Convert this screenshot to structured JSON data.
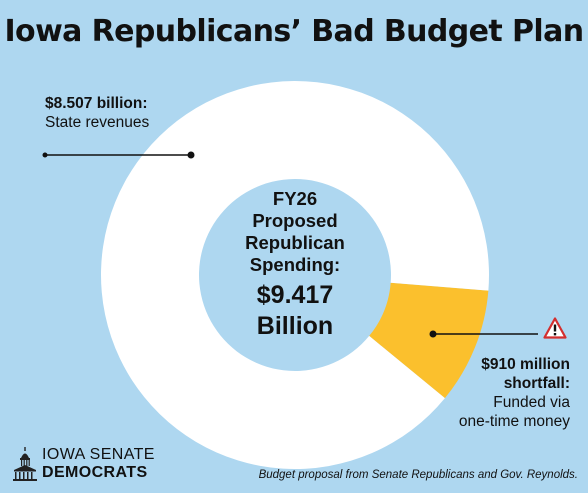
{
  "title": "Iowa Republicans’ Bad Budget Plan",
  "chart_data": {
    "type": "pie",
    "slices": [
      {
        "name": "State revenues",
        "value": 8.507,
        "color": "#ffffff"
      },
      {
        "name": "shortfall",
        "value": 0.91,
        "color": "#fbc02d"
      }
    ],
    "total": 9.417,
    "unit": "billion"
  },
  "labels": {
    "revenue_value": "$8.507 billion:",
    "revenue_desc": "State revenues",
    "shortfall_value_line1": "$910 million",
    "shortfall_value_line2": "shortfall:",
    "shortfall_desc_line1": "Funded via",
    "shortfall_desc_line2": "one-time money"
  },
  "center": {
    "line1": "FY26",
    "line2": "Proposed",
    "line3": "Republican",
    "line4": "Spending:",
    "value_line1": "$9.417",
    "value_line2": "Billion"
  },
  "logo": {
    "line1": "IOWA SENATE",
    "line2": "DEMOCRATS",
    "icon": "capitol-icon"
  },
  "warning_icon": "warning-icon",
  "source": "Budget proposal from Senate Republicans and Gov. Reynolds.",
  "colors": {
    "background": "#aed7f0",
    "revenue": "#ffffff",
    "shortfall": "#fbc02d"
  }
}
